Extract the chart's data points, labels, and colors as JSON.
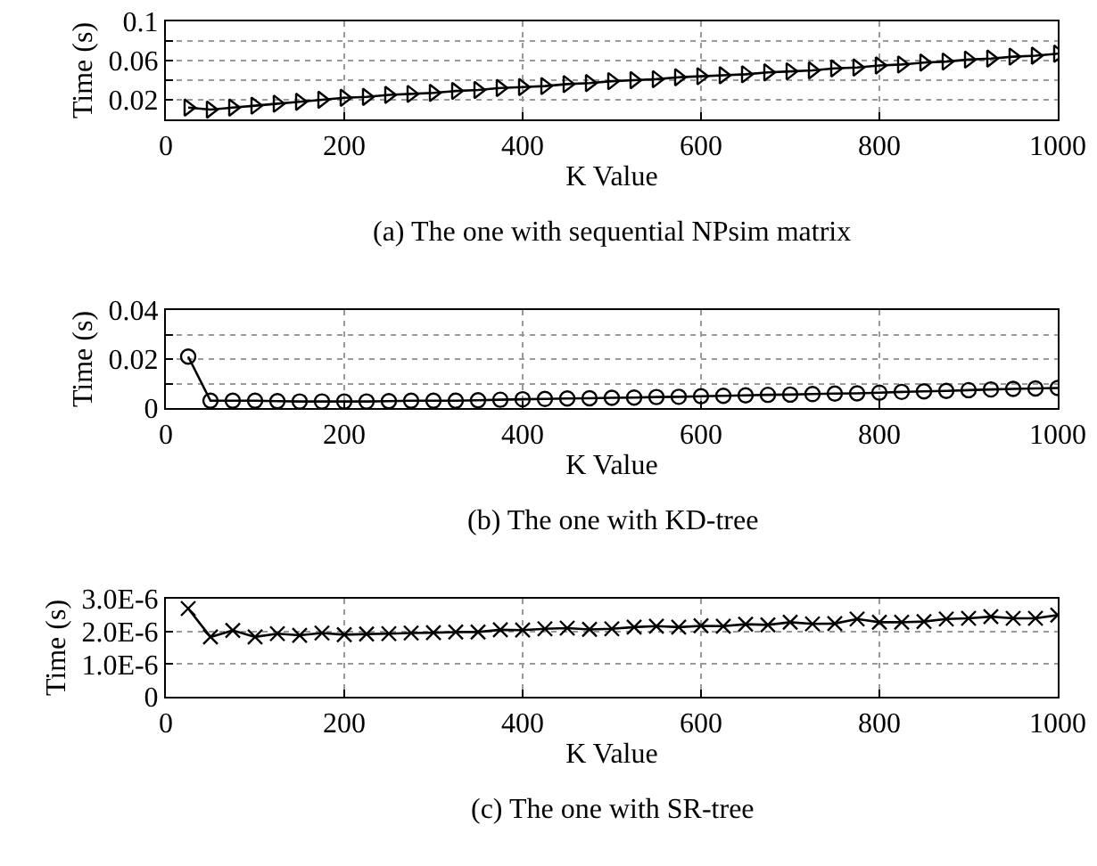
{
  "chart_data": [
    {
      "type": "line",
      "title": "(a) The one with sequential NPsim matrix",
      "xlabel": "K Value",
      "ylabel": "Time (s)",
      "marker": "triangle",
      "grid": true,
      "x": [
        25,
        50,
        75,
        100,
        125,
        150,
        175,
        200,
        225,
        250,
        275,
        300,
        325,
        350,
        375,
        400,
        425,
        450,
        475,
        500,
        525,
        550,
        575,
        600,
        625,
        650,
        675,
        700,
        725,
        750,
        775,
        800,
        825,
        850,
        875,
        900,
        925,
        950,
        975,
        1000
      ],
      "xlim": [
        0,
        1000
      ],
      "xticks": [
        0,
        200,
        400,
        600,
        800,
        1000
      ],
      "ylim": [
        0,
        0.1
      ],
      "yticks": [
        0.02,
        {
          "value": 0.04,
          "label": null
        },
        0.06,
        {
          "value": 0.08,
          "label": null
        },
        0.1
      ],
      "series": [
        {
          "color": "#000000",
          "values": [
            0.012,
            0.01,
            0.012,
            0.014,
            0.016,
            0.018,
            0.02,
            0.022,
            0.023,
            0.025,
            0.026,
            0.027,
            0.029,
            0.03,
            0.032,
            0.033,
            0.034,
            0.036,
            0.037,
            0.039,
            0.04,
            0.041,
            0.043,
            0.044,
            0.045,
            0.046,
            0.048,
            0.049,
            0.05,
            0.052,
            0.053,
            0.055,
            0.056,
            0.058,
            0.059,
            0.061,
            0.062,
            0.064,
            0.065,
            0.067
          ]
        }
      ]
    },
    {
      "type": "line",
      "title": "(b) The one with KD-tree",
      "xlabel": "K Value",
      "ylabel": "Time (s)",
      "marker": "circle",
      "grid": true,
      "x": [
        25,
        50,
        75,
        100,
        125,
        150,
        175,
        200,
        225,
        250,
        275,
        300,
        325,
        350,
        375,
        400,
        425,
        450,
        475,
        500,
        525,
        550,
        575,
        600,
        625,
        650,
        675,
        700,
        725,
        750,
        775,
        800,
        825,
        850,
        875,
        900,
        925,
        950,
        975,
        1000
      ],
      "xlim": [
        0,
        1000
      ],
      "xticks": [
        0,
        200,
        400,
        600,
        800,
        1000
      ],
      "ylim": [
        0,
        0.04
      ],
      "yticks": [
        0,
        {
          "value": 0.01,
          "label": null
        },
        0.02,
        {
          "value": 0.03,
          "label": null
        },
        0.04
      ],
      "series": [
        {
          "color": "#000000",
          "values": [
            0.021,
            0.003,
            0.003,
            0.003,
            0.0028,
            0.0027,
            0.0027,
            0.0027,
            0.0027,
            0.0028,
            0.003,
            0.003,
            0.003,
            0.0032,
            0.0034,
            0.0036,
            0.0037,
            0.0039,
            0.004,
            0.0042,
            0.0043,
            0.0045,
            0.0046,
            0.0048,
            0.005,
            0.0052,
            0.0054,
            0.0055,
            0.0057,
            0.0059,
            0.006,
            0.0063,
            0.0066,
            0.0068,
            0.007,
            0.0073,
            0.0076,
            0.0078,
            0.008,
            0.0082
          ]
        }
      ]
    },
    {
      "type": "line",
      "title": "(c) The one with SR-tree",
      "xlabel": "K Value",
      "ylabel": "Time (s)",
      "marker": "cross",
      "grid": true,
      "x": [
        25,
        50,
        75,
        100,
        125,
        150,
        175,
        200,
        225,
        250,
        275,
        300,
        325,
        350,
        375,
        400,
        425,
        450,
        475,
        500,
        525,
        550,
        575,
        600,
        625,
        650,
        675,
        700,
        725,
        750,
        775,
        800,
        825,
        850,
        875,
        900,
        925,
        950,
        975,
        1000
      ],
      "xlim": [
        0,
        1000
      ],
      "xticks": [
        0,
        200,
        400,
        600,
        800,
        1000
      ],
      "ylim": [
        0,
        3e-06
      ],
      "yticks": [
        0,
        {
          "value": 1e-06,
          "label": "1.0E-6"
        },
        {
          "value": 2e-06,
          "label": "2.0E-6"
        },
        {
          "value": 3e-06,
          "label": "3.0E-6"
        }
      ],
      "series": [
        {
          "color": "#000000",
          "values": [
            2.7e-06,
            1.83e-06,
            2.03e-06,
            1.83e-06,
            1.93e-06,
            1.88e-06,
            1.95e-06,
            1.9e-06,
            1.92e-06,
            1.93e-06,
            1.95e-06,
            1.96e-06,
            1.98e-06,
            1.98e-06,
            2.05e-06,
            2.04e-06,
            2.08e-06,
            2.1e-06,
            2.06e-06,
            2.08e-06,
            2.13e-06,
            2.16e-06,
            2.13e-06,
            2.17e-06,
            2.16e-06,
            2.22e-06,
            2.2e-06,
            2.28e-06,
            2.23e-06,
            2.24e-06,
            2.38e-06,
            2.28e-06,
            2.28e-06,
            2.3e-06,
            2.38e-06,
            2.4e-06,
            2.45e-06,
            2.4e-06,
            2.4e-06,
            2.5e-06
          ]
        }
      ]
    }
  ]
}
